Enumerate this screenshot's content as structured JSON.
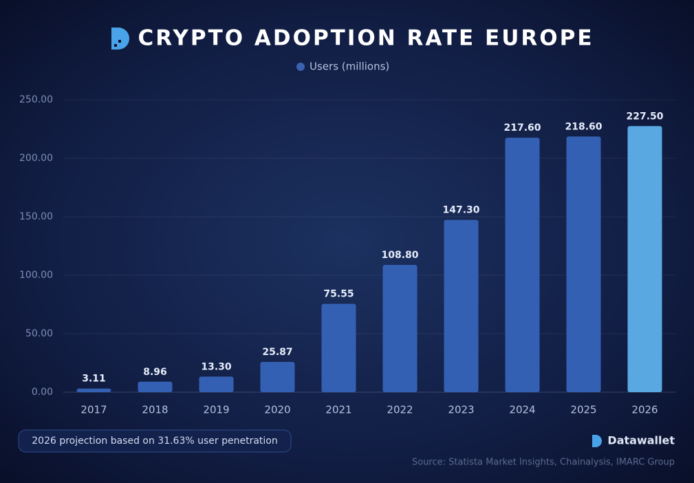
{
  "chart_data": {
    "type": "bar",
    "title": "CRYPTO ADOPTION RATE EUROPE",
    "categories": [
      "2017",
      "2018",
      "2019",
      "2020",
      "2021",
      "2022",
      "2023",
      "2024",
      "2025",
      "2026"
    ],
    "series": [
      {
        "name": "Users (millions)",
        "color": "#3460b4",
        "colors": [
          "#3460b4",
          "#3460b4",
          "#3460b4",
          "#3460b4",
          "#3460b4",
          "#3460b4",
          "#3460b4",
          "#3460b4",
          "#3460b4",
          "#5aa8e2"
        ],
        "values": [
          3.11,
          8.96,
          13.3,
          25.87,
          75.55,
          108.8,
          147.3,
          217.6,
          218.6,
          227.5
        ],
        "value_labels": [
          "3.11",
          "8.96",
          "13.30",
          "25.87",
          "75.55",
          "108.80",
          "147.30",
          "217.60",
          "218.60",
          "227.50"
        ]
      }
    ],
    "ylim": [
      0,
      250
    ],
    "yticks": [
      {
        "value": 0,
        "label": "0.00"
      },
      {
        "value": 50,
        "label": "50.00"
      },
      {
        "value": 100,
        "label": "100.00"
      },
      {
        "value": 150,
        "label": "150.00"
      },
      {
        "value": 200,
        "label": "200.00"
      },
      {
        "value": 250,
        "label": "250.00"
      }
    ],
    "grid": true,
    "annotation": "2026 projection based on 31.63% user penetration",
    "brand": "Datawallet",
    "source": "Source: Statista Market Insights, Chainalysis, IMARC Group"
  }
}
